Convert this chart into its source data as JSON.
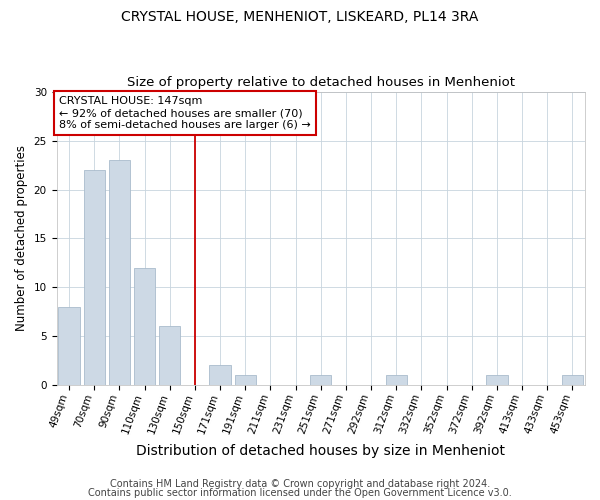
{
  "title": "CRYSTAL HOUSE, MENHENIOT, LISKEARD, PL14 3RA",
  "subtitle": "Size of property relative to detached houses in Menheniot",
  "xlabel": "Distribution of detached houses by size in Menheniot",
  "ylabel": "Number of detached properties",
  "categories": [
    "49sqm",
    "70sqm",
    "90sqm",
    "110sqm",
    "130sqm",
    "150sqm",
    "171sqm",
    "191sqm",
    "211sqm",
    "231sqm",
    "251sqm",
    "271sqm",
    "292sqm",
    "312sqm",
    "332sqm",
    "352sqm",
    "372sqm",
    "392sqm",
    "413sqm",
    "433sqm",
    "453sqm"
  ],
  "values": [
    8,
    22,
    23,
    12,
    6,
    0,
    2,
    1,
    0,
    0,
    1,
    0,
    0,
    1,
    0,
    0,
    0,
    1,
    0,
    0,
    1
  ],
  "bar_color": "#cdd9e5",
  "bar_edgecolor": "#aabccc",
  "vline_x": 5,
  "vline_color": "#cc0000",
  "annotation_text": "CRYSTAL HOUSE: 147sqm\n← 92% of detached houses are smaller (70)\n8% of semi-detached houses are larger (6) →",
  "annotation_box_edgecolor": "#cc0000",
  "ylim": [
    0,
    30
  ],
  "yticks": [
    0,
    5,
    10,
    15,
    20,
    25,
    30
  ],
  "footer1": "Contains HM Land Registry data © Crown copyright and database right 2024.",
  "footer2": "Contains public sector information licensed under the Open Government Licence v3.0.",
  "title_fontsize": 10,
  "subtitle_fontsize": 9.5,
  "ylabel_fontsize": 8.5,
  "xlabel_fontsize": 10,
  "tick_fontsize": 7.5,
  "annotation_fontsize": 8,
  "footer_fontsize": 7,
  "background_color": "#ffffff",
  "grid_color": "#c8d4de"
}
